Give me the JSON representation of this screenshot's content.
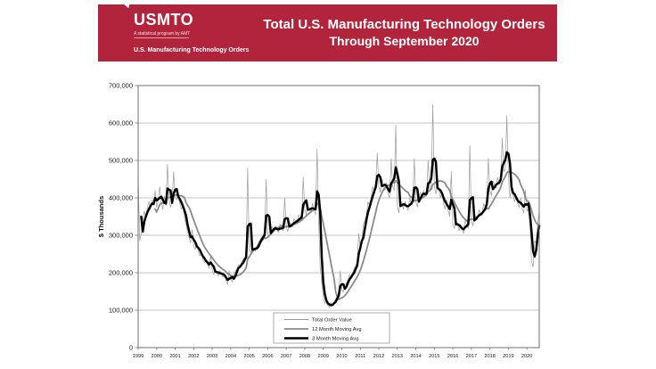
{
  "header": {
    "background_color": "#b2243c",
    "logo": {
      "text": "USMTO",
      "tagline": "A statistical program by AMT",
      "subtitle": "U.S. Manufacturing Technology Orders"
    },
    "title_line1": "Total U.S. Manufacturing Technology Orders",
    "title_line2": "Through September 2020"
  },
  "chart_data": {
    "type": "line",
    "title": "Total U.S. Manufacturing Technology Orders Through September 2020",
    "xlabel": "",
    "ylabel": "$ Thousands",
    "ylim": [
      0,
      700000
    ],
    "ytick_step": 100000,
    "ytick_labels": [
      "0",
      "100,000",
      "200,000",
      "300,000",
      "400,000",
      "500,000",
      "600,000",
      "700,000"
    ],
    "xtick_labels": [
      "1999",
      "2000",
      "2001",
      "2002",
      "2003",
      "2004",
      "2005",
      "2006",
      "2007",
      "2008",
      "2009",
      "2010",
      "2011",
      "2012",
      "2013",
      "2014",
      "2015",
      "2016",
      "2017",
      "2018",
      "2019",
      "2020"
    ],
    "x_unit": "month",
    "x_range": [
      "1999-01",
      "2020-09"
    ],
    "grid": "horizontal",
    "legend_position": "bottom-center-inside",
    "axis_color": "#6f6f6f",
    "grid_color": "#b0b0b0",
    "series": [
      {
        "name": "Total Order Value",
        "kind": "monthly-values",
        "color": "#9b9b9b",
        "width": 0.7,
        "values": [
          460000,
          285000,
          305000,
          340000,
          365000,
          345000,
          375000,
          390000,
          370000,
          395000,
          385000,
          420000,
          375000,
          395000,
          430000,
          385000,
          370000,
          405000,
          380000,
          490000,
          395000,
          375000,
          390000,
          470000,
          405000,
          395000,
          410000,
          385000,
          370000,
          380000,
          350000,
          330000,
          310000,
          295000,
          280000,
          315000,
          270000,
          262000,
          280000,
          258000,
          245000,
          252000,
          235000,
          228000,
          232000,
          222000,
          212000,
          248000,
          205000,
          195000,
          210000,
          200000,
          192000,
          205000,
          196000,
          188000,
          196000,
          178000,
          168000,
          205000,
          185000,
          175000,
          192000,
          205000,
          210000,
          222000,
          215000,
          228000,
          235000,
          240000,
          248000,
          480000,
          262000,
          252000,
          270000,
          265000,
          258000,
          272000,
          280000,
          288000,
          295000,
          300000,
          308000,
          450000,
          305000,
          295000,
          318000,
          322000,
          310000,
          325000,
          315000,
          308000,
          330000,
          318000,
          312000,
          400000,
          325000,
          310000,
          335000,
          330000,
          322000,
          345000,
          338000,
          330000,
          355000,
          348000,
          340000,
          455000,
          370000,
          355000,
          380000,
          372000,
          360000,
          385000,
          368000,
          355000,
          530000,
          340000,
          215000,
          175000,
          135000,
          118000,
          125000,
          112000,
          108000,
          120000,
          114000,
          122000,
          130000,
          138000,
          148000,
          205000,
          155000,
          148000,
          168000,
          172000,
          180000,
          195000,
          188000,
          200000,
          212000,
          218000,
          228000,
          305000,
          265000,
          285000,
          330000,
          340000,
          355000,
          390000,
          380000,
          400000,
          430000,
          420000,
          435000,
          520000,
          430000,
          415000,
          450000,
          435000,
          420000,
          440000,
          410000,
          400000,
          505000,
          430000,
          420000,
          595000,
          380000,
          360000,
          395000,
          385000,
          370000,
          390000,
          375000,
          368000,
          400000,
          385000,
          390000,
          505000,
          390000,
          375000,
          405000,
          415000,
          400000,
          420000,
          410000,
          405000,
          500000,
          420000,
          435000,
          650000,
          430000,
          410000,
          440000,
          420000,
          400000,
          415000,
          385000,
          370000,
          395000,
          365000,
          350000,
          470000,
          330000,
          318000,
          340000,
          330000,
          312000,
          328000,
          315000,
          305000,
          345000,
          325000,
          318000,
          540000,
          340000,
          325000,
          355000,
          350000,
          342000,
          368000,
          358000,
          352000,
          385000,
          375000,
          390000,
          505000,
          420000,
          405000,
          445000,
          435000,
          425000,
          455000,
          440000,
          450000,
          560000,
          470000,
          475000,
          620000,
          460000,
          400000,
          430000,
          410000,
          390000,
          405000,
          385000,
          375000,
          400000,
          370000,
          360000,
          420000,
          365000,
          370000,
          330000,
          230000,
          215000,
          285000,
          280000,
          330000,
          365000
        ]
      },
      {
        "name": "12 Month Moving Avg",
        "kind": "trailing-moving-average",
        "window": 12,
        "color": "#8a8a8a",
        "width": 1.8
      },
      {
        "name": "3 Month Moving Avg",
        "kind": "trailing-moving-average",
        "window": 3,
        "color": "#000000",
        "width": 2.5
      }
    ]
  }
}
